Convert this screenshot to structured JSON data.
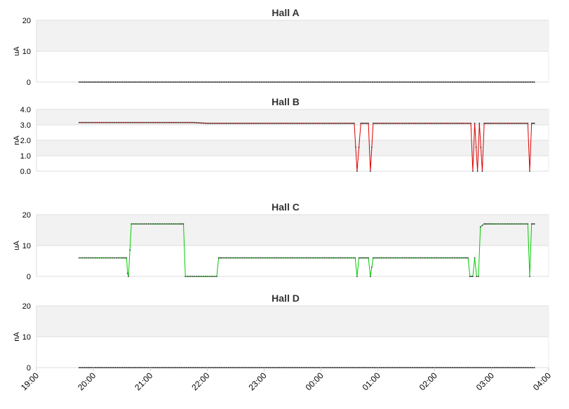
{
  "chart_data": [
    {
      "type": "line",
      "title": "Hall A",
      "ylabel": "uA",
      "ylim": [
        0,
        20
      ],
      "yticks": [
        "0",
        "10",
        "20"
      ],
      "xlim": [
        "19:00",
        "04:00"
      ],
      "grid": true,
      "series": [
        {
          "color": "#333333",
          "x": [
            "19:45",
            "03:45"
          ],
          "y": [
            0,
            0
          ]
        }
      ]
    },
    {
      "type": "line",
      "title": "Hall B",
      "ylabel": "nA",
      "ylim": [
        0,
        4
      ],
      "yticks": [
        "0.0",
        "1.0",
        "2.0",
        "3.0",
        "4.0"
      ],
      "xlim": [
        "19:00",
        "04:00"
      ],
      "grid": true,
      "series": [
        {
          "color": "#dd0000",
          "x": [
            "19:45",
            "20:30",
            "21:00",
            "21:30",
            "21:45",
            "22:00",
            "22:30",
            "23:00",
            "23:30",
            "00:00",
            "00:30",
            "00:35",
            "00:38",
            "00:42",
            "00:45",
            "00:50",
            "00:52",
            "00:55",
            "01:00",
            "01:30",
            "02:00",
            "02:30",
            "02:38",
            "02:40",
            "02:42",
            "02:45",
            "02:47",
            "02:50",
            "02:52",
            "02:55",
            "03:00",
            "03:30",
            "03:38",
            "03:40",
            "03:42",
            "03:45"
          ],
          "y": [
            3.15,
            3.15,
            3.15,
            3.15,
            3.15,
            3.1,
            3.1,
            3.1,
            3.1,
            3.1,
            3.1,
            3.1,
            0,
            3.1,
            3.1,
            3.1,
            0,
            3.1,
            3.1,
            3.1,
            3.1,
            3.1,
            3.1,
            0,
            3.1,
            0,
            3.1,
            0,
            3.1,
            3.1,
            3.1,
            3.1,
            3.1,
            0,
            3.1,
            3.1
          ]
        }
      ]
    },
    {
      "type": "line",
      "title": "Hall C",
      "ylabel": "uA",
      "ylim": [
        0,
        20
      ],
      "yticks": [
        "0",
        "10",
        "20"
      ],
      "xlim": [
        "19:00",
        "04:00"
      ],
      "grid": true,
      "series": [
        {
          "color": "#00cc00",
          "x": [
            "19:45",
            "20:30",
            "20:35",
            "20:36",
            "20:37",
            "20:40",
            "21:00",
            "21:30",
            "21:35",
            "21:37",
            "22:00",
            "22:10",
            "22:12",
            "22:15",
            "22:30",
            "23:00",
            "23:30",
            "00:00",
            "00:30",
            "00:36",
            "00:38",
            "00:40",
            "00:45",
            "00:50",
            "00:52",
            "00:55",
            "01:00",
            "01:30",
            "02:00",
            "02:30",
            "02:35",
            "02:37",
            "02:40",
            "02:42",
            "02:44",
            "02:46",
            "02:48",
            "02:52",
            "02:55",
            "03:00",
            "03:30",
            "03:38",
            "03:40",
            "03:42",
            "03:45"
          ],
          "y": [
            6,
            6,
            6,
            1,
            0,
            17,
            17,
            17,
            17,
            0,
            0,
            0,
            6,
            6,
            6,
            6,
            6,
            6,
            6,
            6,
            0,
            6,
            6,
            6,
            0,
            6,
            6,
            6,
            6,
            6,
            6,
            0,
            0,
            6,
            0,
            0,
            16,
            17,
            17,
            17,
            17,
            17,
            0,
            17,
            17
          ]
        }
      ]
    },
    {
      "type": "line",
      "title": "Hall D",
      "ylabel": "nA",
      "ylim": [
        0,
        20
      ],
      "yticks": [
        "0",
        "10",
        "20"
      ],
      "xlim": [
        "19:00",
        "04:00"
      ],
      "grid": true,
      "series": [
        {
          "color": "#333333",
          "x": [
            "19:45",
            "03:45"
          ],
          "y": [
            0,
            0
          ]
        }
      ]
    }
  ],
  "x_axis": {
    "ticks": [
      "19:00",
      "20:00",
      "21:00",
      "22:00",
      "23:00",
      "00:00",
      "01:00",
      "02:00",
      "03:00",
      "04:00"
    ]
  }
}
